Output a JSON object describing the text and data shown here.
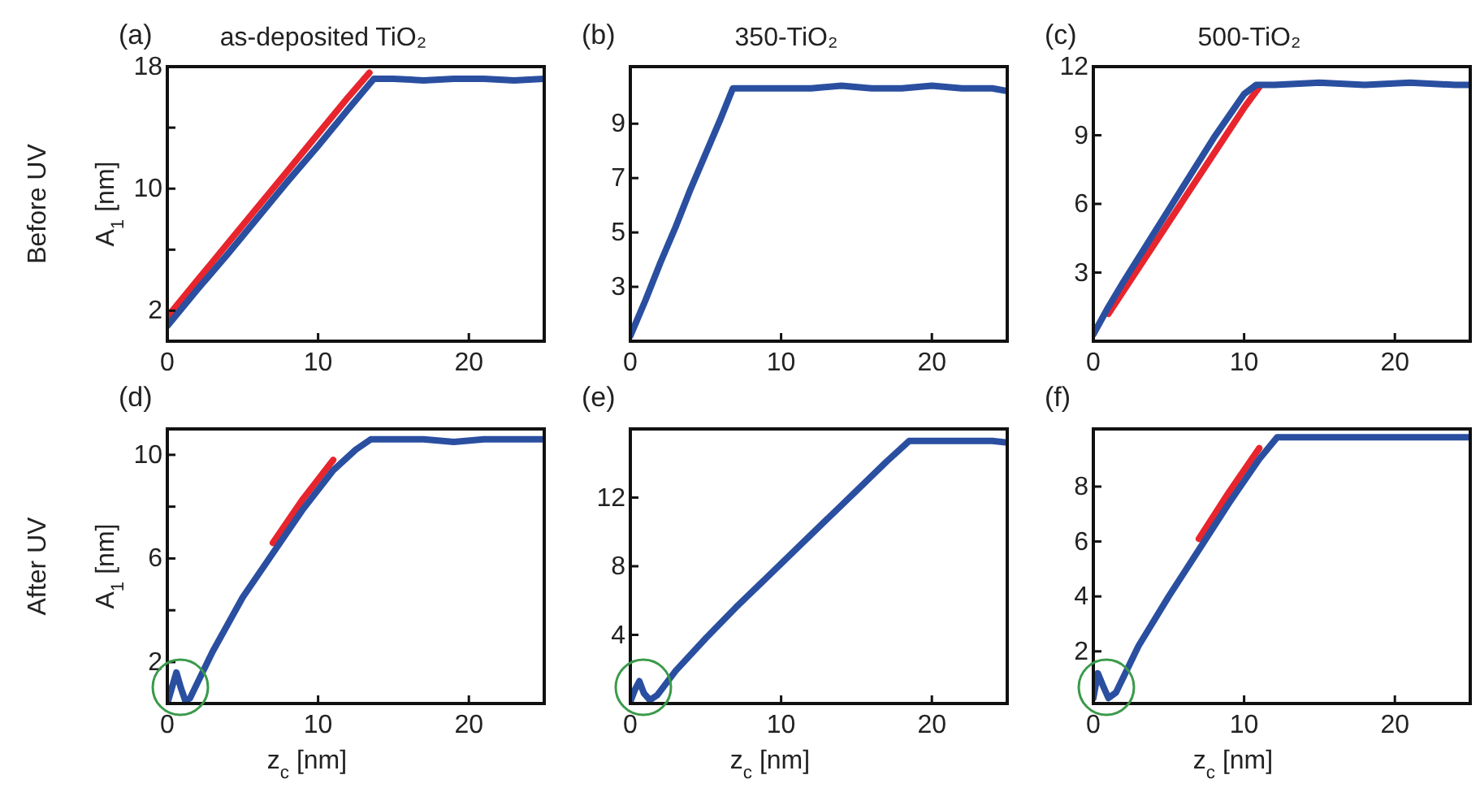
{
  "chart_data": [
    {
      "type": "line",
      "title": "as-deposited TiO₂",
      "ylabel": "A$_{1}$ [nm]",
      "annotations": [
        "(a)",
        "Before UV"
      ],
      "xlim": [
        0,
        25
      ],
      "xticks": [
        0,
        10,
        20
      ],
      "ylim": [
        0,
        18
      ],
      "yticks": [
        {
          "value": 2,
          "label": "2"
        },
        {
          "value": 6,
          "label": null
        },
        {
          "value": 10,
          "label": "10"
        },
        {
          "value": 14,
          "label": null
        },
        {
          "value": 18,
          "label": "18"
        }
      ],
      "grid": false,
      "series": [
        {
          "color": "#e8252d",
          "x": [
            0,
            2,
            4,
            6,
            8,
            10,
            12,
            13.4
          ],
          "values": [
            1.6,
            4.0,
            6.4,
            8.8,
            11.2,
            13.6,
            16.0,
            17.6
          ]
        },
        {
          "color": "#2a4fa0",
          "x": [
            0,
            2,
            4,
            6,
            8,
            10,
            12,
            13.7,
            15,
            17,
            19,
            21,
            23,
            25
          ],
          "values": [
            1.0,
            3.4,
            5.7,
            8.1,
            10.5,
            12.8,
            15.2,
            17.2,
            17.2,
            17.1,
            17.2,
            17.2,
            17.1,
            17.2
          ]
        }
      ]
    },
    {
      "type": "line",
      "title": "350-TiO₂",
      "annotations": [
        "(b)"
      ],
      "xlim": [
        0,
        25
      ],
      "xticks": [
        0,
        10,
        20
      ],
      "ylim": [
        1,
        11.1
      ],
      "yticks": [
        3,
        5,
        7,
        9
      ],
      "grid": false,
      "series": [
        {
          "color": "#2a4fa0",
          "x": [
            0,
            1,
            2,
            3,
            4,
            5,
            6,
            6.8,
            8,
            10,
            12,
            14,
            16,
            18,
            20,
            22,
            24,
            25
          ],
          "values": [
            1.2,
            2.5,
            3.9,
            5.2,
            6.6,
            7.9,
            9.2,
            10.3,
            10.3,
            10.3,
            10.3,
            10.4,
            10.3,
            10.3,
            10.4,
            10.3,
            10.3,
            10.2
          ]
        }
      ]
    },
    {
      "type": "line",
      "title": "500-TiO₂",
      "annotations": [
        "(c)"
      ],
      "xlim": [
        0,
        25
      ],
      "xticks": [
        0,
        10,
        20
      ],
      "ylim": [
        0,
        12
      ],
      "yticks": [
        3,
        6,
        9,
        12
      ],
      "grid": false,
      "series": [
        {
          "color": "#e8252d",
          "x": [
            1,
            2,
            4,
            6,
            8,
            10,
            11
          ],
          "values": [
            1.2,
            2.2,
            4.2,
            6.2,
            8.2,
            10.2,
            11.1
          ]
        },
        {
          "color": "#2a4fa0",
          "x": [
            0,
            1,
            2,
            4,
            6,
            8,
            10,
            10.8,
            12,
            15,
            18,
            21,
            24,
            25
          ],
          "values": [
            0.3,
            1.5,
            2.6,
            4.7,
            6.8,
            8.9,
            10.8,
            11.2,
            11.2,
            11.3,
            11.2,
            11.3,
            11.2,
            11.2
          ]
        }
      ]
    },
    {
      "type": "line",
      "xlabel": "z$_{c}$ [nm]",
      "ylabel": "A$_{1}$ [nm]",
      "annotations": [
        "(d)",
        "After UV"
      ],
      "xlim": [
        0,
        25
      ],
      "xticks": [
        0,
        10,
        20
      ],
      "ylim": [
        0.4,
        11
      ],
      "yticks": [
        {
          "value": 2,
          "label": "2"
        },
        {
          "value": 4,
          "label": null
        },
        {
          "value": 6,
          "label": "6"
        },
        {
          "value": 8,
          "label": null
        },
        {
          "value": 10,
          "label": "10"
        }
      ],
      "grid": false,
      "series": [
        {
          "color": "#e8252d",
          "x": [
            7,
            9,
            11
          ],
          "values": [
            6.6,
            8.3,
            9.8
          ]
        },
        {
          "color": "#2a4fa0",
          "x": [
            0,
            0.3,
            0.6,
            0.9,
            1.2,
            1.5,
            3,
            5,
            7,
            9,
            11,
            12.5,
            13.5,
            15,
            17,
            19,
            21,
            23,
            25
          ],
          "values": [
            0.4,
            1.0,
            1.6,
            1.0,
            0.5,
            0.6,
            2.4,
            4.5,
            6.2,
            7.9,
            9.4,
            10.2,
            10.6,
            10.6,
            10.6,
            10.5,
            10.6,
            10.6,
            10.6
          ]
        }
      ]
    },
    {
      "type": "line",
      "xlabel": "z$_{c}$ [nm]",
      "annotations": [
        "(e)"
      ],
      "xlim": [
        0,
        25
      ],
      "xticks": [
        0,
        10,
        20
      ],
      "ylim": [
        0,
        16
      ],
      "yticks": [
        4,
        8,
        12
      ],
      "grid": false,
      "series": [
        {
          "color": "#2a4fa0",
          "x": [
            0,
            0.3,
            0.6,
            0.9,
            1.3,
            1.8,
            3,
            5,
            7,
            9,
            11,
            13,
            15,
            17,
            18.5,
            20,
            22,
            24,
            25
          ],
          "values": [
            0.1,
            0.8,
            1.3,
            0.6,
            0.2,
            0.5,
            1.9,
            3.8,
            5.6,
            7.3,
            9.0,
            10.7,
            12.4,
            14.1,
            15.3,
            15.3,
            15.3,
            15.3,
            15.2
          ]
        }
      ]
    },
    {
      "type": "line",
      "xlabel": "z$_{c}$ [nm]",
      "annotations": [
        "(f)"
      ],
      "xlim": [
        0,
        25
      ],
      "xticks": [
        0,
        10,
        20
      ],
      "ylim": [
        0.1,
        10.1
      ],
      "yticks": [
        2,
        4,
        6,
        8
      ],
      "grid": false,
      "series": [
        {
          "color": "#e8252d",
          "x": [
            7,
            9,
            11
          ],
          "values": [
            6.1,
            7.8,
            9.4
          ]
        },
        {
          "color": "#2a4fa0",
          "x": [
            0,
            0.3,
            0.6,
            1,
            1.5,
            3,
            5,
            7,
            9,
            11,
            12.2,
            14,
            16,
            18,
            20,
            22,
            24,
            25
          ],
          "values": [
            0.3,
            1.2,
            0.8,
            0.3,
            0.5,
            2.2,
            4.0,
            5.7,
            7.4,
            9.0,
            9.8,
            9.8,
            9.8,
            9.8,
            9.8,
            9.8,
            9.8,
            9.8
          ]
        }
      ]
    }
  ]
}
